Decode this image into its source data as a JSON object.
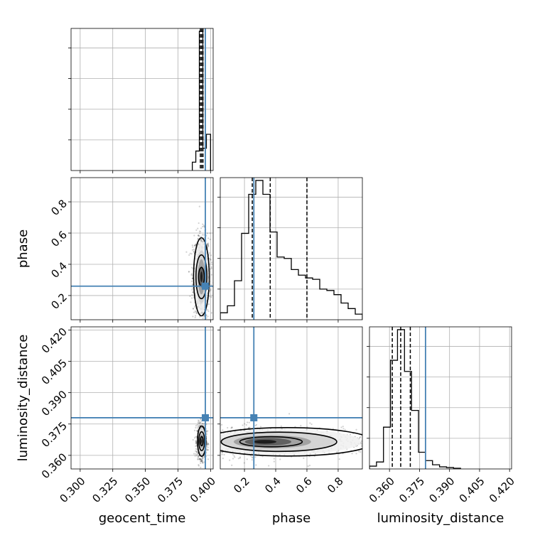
{
  "chart_data": {
    "type": "corner",
    "parameters": [
      "geocent_time",
      "phase",
      "luminosity_distance"
    ],
    "truth_color": "#4682b4",
    "truths": {
      "geocent_time": 0.396,
      "phase": 0.26,
      "luminosity_distance": 0.378
    },
    "grid": true,
    "panels": [
      {
        "id": "geocent_time-hist",
        "kind": "histogram",
        "x": "geocent_time",
        "xlim": [
          0.293,
          0.402
        ],
        "xticks": [
          0.3,
          0.325,
          0.35,
          0.375,
          0.4
        ],
        "xticklabels": [
          "0.300",
          "0.325",
          "0.350",
          "0.375",
          "0.400"
        ],
        "bins": [
          [
            0.386,
            0.3887,
            0.06
          ],
          [
            0.3887,
            0.3914,
            0.14
          ],
          [
            0.3914,
            0.3941,
            1.0
          ],
          [
            0.3941,
            0.3968,
            0.16
          ],
          [
            0.3968,
            0.4,
            0.26
          ]
        ],
        "quantiles": [
          0.3922,
          0.3932,
          0.3942
        ]
      },
      {
        "id": "phase-hist",
        "kind": "histogram",
        "x": "phase",
        "xlim": [
          0.045,
          0.955
        ],
        "xticks": [
          0.2,
          0.4,
          0.6,
          0.8
        ],
        "xticklabels": [
          "0.2",
          "0.4",
          "0.6",
          "0.8"
        ],
        "bins": [
          [
            0.045,
            0.0905,
            0.05
          ],
          [
            0.0905,
            0.136,
            0.1
          ],
          [
            0.136,
            0.1815,
            0.28
          ],
          [
            0.1815,
            0.227,
            0.62
          ],
          [
            0.227,
            0.2725,
            0.9
          ],
          [
            0.2725,
            0.318,
            1.0
          ],
          [
            0.318,
            0.3635,
            0.9
          ],
          [
            0.3635,
            0.409,
            0.63
          ],
          [
            0.409,
            0.4545,
            0.45
          ],
          [
            0.4545,
            0.5,
            0.44
          ],
          [
            0.5,
            0.5455,
            0.36
          ],
          [
            0.5455,
            0.591,
            0.32
          ],
          [
            0.591,
            0.6365,
            0.3
          ],
          [
            0.6365,
            0.682,
            0.29
          ],
          [
            0.682,
            0.7275,
            0.22
          ],
          [
            0.7275,
            0.773,
            0.21
          ],
          [
            0.773,
            0.8185,
            0.18
          ],
          [
            0.8185,
            0.864,
            0.12
          ],
          [
            0.864,
            0.9095,
            0.08
          ],
          [
            0.9095,
            0.955,
            0.04
          ]
        ],
        "quantiles": [
          0.25,
          0.365,
          0.6
        ]
      },
      {
        "id": "luminosity_distance-hist",
        "kind": "histogram",
        "x": "luminosity_distance",
        "xlim": [
          0.35,
          0.421
        ],
        "xticks": [
          0.36,
          0.375,
          0.39,
          0.405,
          0.42
        ],
        "xticklabels": [
          "0.360",
          "0.375",
          "0.390",
          "0.405",
          "0.420"
        ],
        "bins": [
          [
            0.35,
            0.3535,
            0.02
          ],
          [
            0.3535,
            0.357,
            0.05
          ],
          [
            0.357,
            0.3605,
            0.3
          ],
          [
            0.3605,
            0.364,
            0.78
          ],
          [
            0.364,
            0.3675,
            1.0
          ],
          [
            0.3675,
            0.371,
            0.7
          ],
          [
            0.371,
            0.3745,
            0.42
          ],
          [
            0.3745,
            0.378,
            0.12
          ],
          [
            0.378,
            0.3815,
            0.06
          ],
          [
            0.3815,
            0.385,
            0.03
          ],
          [
            0.385,
            0.3885,
            0.015
          ],
          [
            0.3885,
            0.392,
            0.01
          ],
          [
            0.392,
            0.3955,
            0.005
          ]
        ],
        "quantiles": [
          0.3614,
          0.3656,
          0.3704
        ]
      },
      {
        "id": "geocent_time-vs-phase",
        "kind": "density",
        "x": "geocent_time",
        "y": "phase",
        "xlim": [
          0.293,
          0.402
        ],
        "ylim": [
          0.045,
          0.955
        ],
        "yticks": [
          0.2,
          0.4,
          0.6,
          0.8
        ],
        "yticklabels": [
          "0.2",
          "0.4",
          "0.6",
          "0.8"
        ],
        "center": [
          0.393,
          0.32
        ],
        "contour_widths": [
          0.006,
          0.0042,
          0.0022
        ],
        "contour_heights": [
          0.25,
          0.14,
          0.06
        ]
      },
      {
        "id": "geocent_time-vs-luminosity_distance",
        "kind": "density",
        "x": "geocent_time",
        "y": "luminosity_distance",
        "xlim": [
          0.293,
          0.402
        ],
        "ylim": [
          0.3535,
          0.4215
        ],
        "yticks": [
          0.36,
          0.375,
          0.39,
          0.405,
          0.42
        ],
        "yticklabels": [
          "0.360",
          "0.375",
          "0.390",
          "0.405",
          "0.420"
        ],
        "center": [
          0.3932,
          0.3668
        ],
        "contour_widths": [
          0.0032,
          0.0022,
          0.0012
        ],
        "contour_heights": [
          0.0073,
          0.0045,
          0.0022
        ]
      },
      {
        "id": "phase-vs-luminosity_distance",
        "kind": "density",
        "x": "phase",
        "y": "luminosity_distance",
        "xlim": [
          0.045,
          0.955
        ],
        "ylim": [
          0.3535,
          0.4215
        ],
        "center": [
          0.31,
          0.3665
        ],
        "contour_widths": [
          0.55,
          0.37,
          0.2
        ],
        "contour_heights": [
          0.0068,
          0.0046,
          0.0024
        ]
      }
    ],
    "xlabels": [
      "geocent_time",
      "phase",
      "luminosity_distance"
    ],
    "ylabels": [
      "phase",
      "luminosity_distance"
    ]
  }
}
